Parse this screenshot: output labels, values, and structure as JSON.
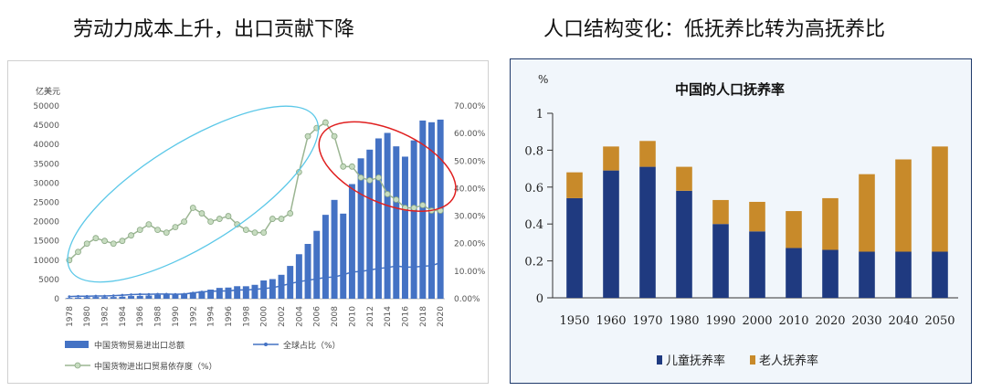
{
  "headings": {
    "left": "劳动力成本上升，出口贡献下降",
    "right": "人口结构变化：低抚养比转为高抚养比"
  },
  "chart_data": [
    {
      "type": "bar",
      "unit_label": "亿美元",
      "categories": [
        "1978",
        "1979",
        "1980",
        "1981",
        "1982",
        "1983",
        "1984",
        "1985",
        "1986",
        "1987",
        "1988",
        "1989",
        "1990",
        "1991",
        "1992",
        "1993",
        "1994",
        "1995",
        "1996",
        "1997",
        "1998",
        "1999",
        "2000",
        "2001",
        "2002",
        "2003",
        "2004",
        "2005",
        "2006",
        "2007",
        "2008",
        "2009",
        "2010",
        "2011",
        "2012",
        "2013",
        "2014",
        "2015",
        "2016",
        "2017",
        "2018",
        "2019",
        "2020"
      ],
      "x_tick_labels": [
        "1978",
        "1980",
        "1982",
        "1984",
        "1986",
        "1988",
        "1990",
        "1992",
        "1994",
        "1996",
        "1998",
        "2000",
        "2002",
        "2004",
        "2006",
        "2008",
        "2010",
        "2012",
        "2014",
        "2016",
        "2018",
        "2020"
      ],
      "ylim_left": [
        0,
        50000
      ],
      "yticks_left": [
        "0",
        "5000",
        "10000",
        "15000",
        "20000",
        "25000",
        "30000",
        "35000",
        "40000",
        "45000",
        "50000"
      ],
      "ylim_right": [
        0,
        70
      ],
      "yticks_right": [
        "0.00%",
        "10.00%",
        "20.00%",
        "30.00%",
        "40.00%",
        "50.00%",
        "60.00%",
        "70.00%"
      ],
      "series": [
        {
          "name": "中国货物贸易进出口总额",
          "type": "bar",
          "axis": "left",
          "color": "#4472c4",
          "values": [
            206,
            293,
            381,
            440,
            416,
            436,
            536,
            696,
            738,
            827,
            1028,
            1117,
            1154,
            1357,
            1655,
            1957,
            2366,
            2809,
            2899,
            3252,
            3239,
            3606,
            4743,
            5097,
            6208,
            8510,
            11546,
            14219,
            17604,
            21766,
            25633,
            22075,
            29740,
            36419,
            38671,
            41590,
            43015,
            39530,
            36856,
            41071,
            46224,
            45778,
            46463
          ]
        },
        {
          "name": "全球占比（%）",
          "type": "line",
          "axis": "right",
          "color": "#4472c4",
          "values": [
            0.8,
            0.9,
            0.9,
            1.0,
            1.0,
            1.1,
            1.3,
            1.5,
            1.6,
            1.6,
            1.7,
            1.7,
            1.6,
            1.7,
            2.1,
            2.5,
            2.7,
            2.8,
            2.8,
            3.2,
            3.2,
            3.4,
            3.7,
            4.0,
            4.7,
            5.5,
            6.2,
            6.7,
            7.2,
            7.7,
            7.9,
            8.7,
            9.7,
            9.9,
            10.4,
            11.0,
            11.3,
            11.9,
            11.5,
            11.5,
            11.8,
            12.0,
            13.1
          ]
        },
        {
          "name": "中国货物进出口贸易依存度（%）",
          "type": "line",
          "axis": "right",
          "color": "#a9c5a0",
          "values": [
            14,
            17,
            20,
            22,
            21,
            20,
            21,
            23,
            25,
            27,
            25,
            24,
            26,
            28,
            33,
            31,
            28,
            29,
            30,
            27,
            25,
            24,
            24,
            29,
            29,
            31,
            46,
            59,
            62,
            64,
            59,
            48,
            48,
            44,
            43,
            44,
            38,
            36,
            33,
            33,
            34,
            32,
            32
          ]
        }
      ],
      "legend": [
        "中国货物贸易进出口总额",
        "全球占比（%）",
        "中国货物进出口贸易依存度（%）"
      ],
      "annotations": [
        "light-blue ellipse around rising dependence 1978-2006",
        "red ellipse around falling dependence 2007-2020"
      ]
    },
    {
      "type": "bar",
      "title": "中国的人口抚养率",
      "unit_label": "%",
      "categories": [
        "1950",
        "1960",
        "1970",
        "1980",
        "1990",
        "2000",
        "2010",
        "2020",
        "2030",
        "2040",
        "2050"
      ],
      "ylim": [
        0,
        1
      ],
      "yticks": [
        "0",
        "0.2",
        "0.4",
        "0.6",
        "0.8",
        "1"
      ],
      "stacked": true,
      "series": [
        {
          "name": "儿童抚养率",
          "color": "#1f3a80",
          "values": [
            0.54,
            0.69,
            0.71,
            0.58,
            0.4,
            0.36,
            0.27,
            0.26,
            0.25,
            0.25,
            0.25
          ]
        },
        {
          "name": "老人抚养率",
          "color": "#c88a2a",
          "values": [
            0.14,
            0.13,
            0.14,
            0.13,
            0.13,
            0.16,
            0.2,
            0.28,
            0.42,
            0.5,
            0.57
          ]
        }
      ],
      "legend": [
        "儿童抚养率",
        "老人抚养率"
      ]
    }
  ]
}
